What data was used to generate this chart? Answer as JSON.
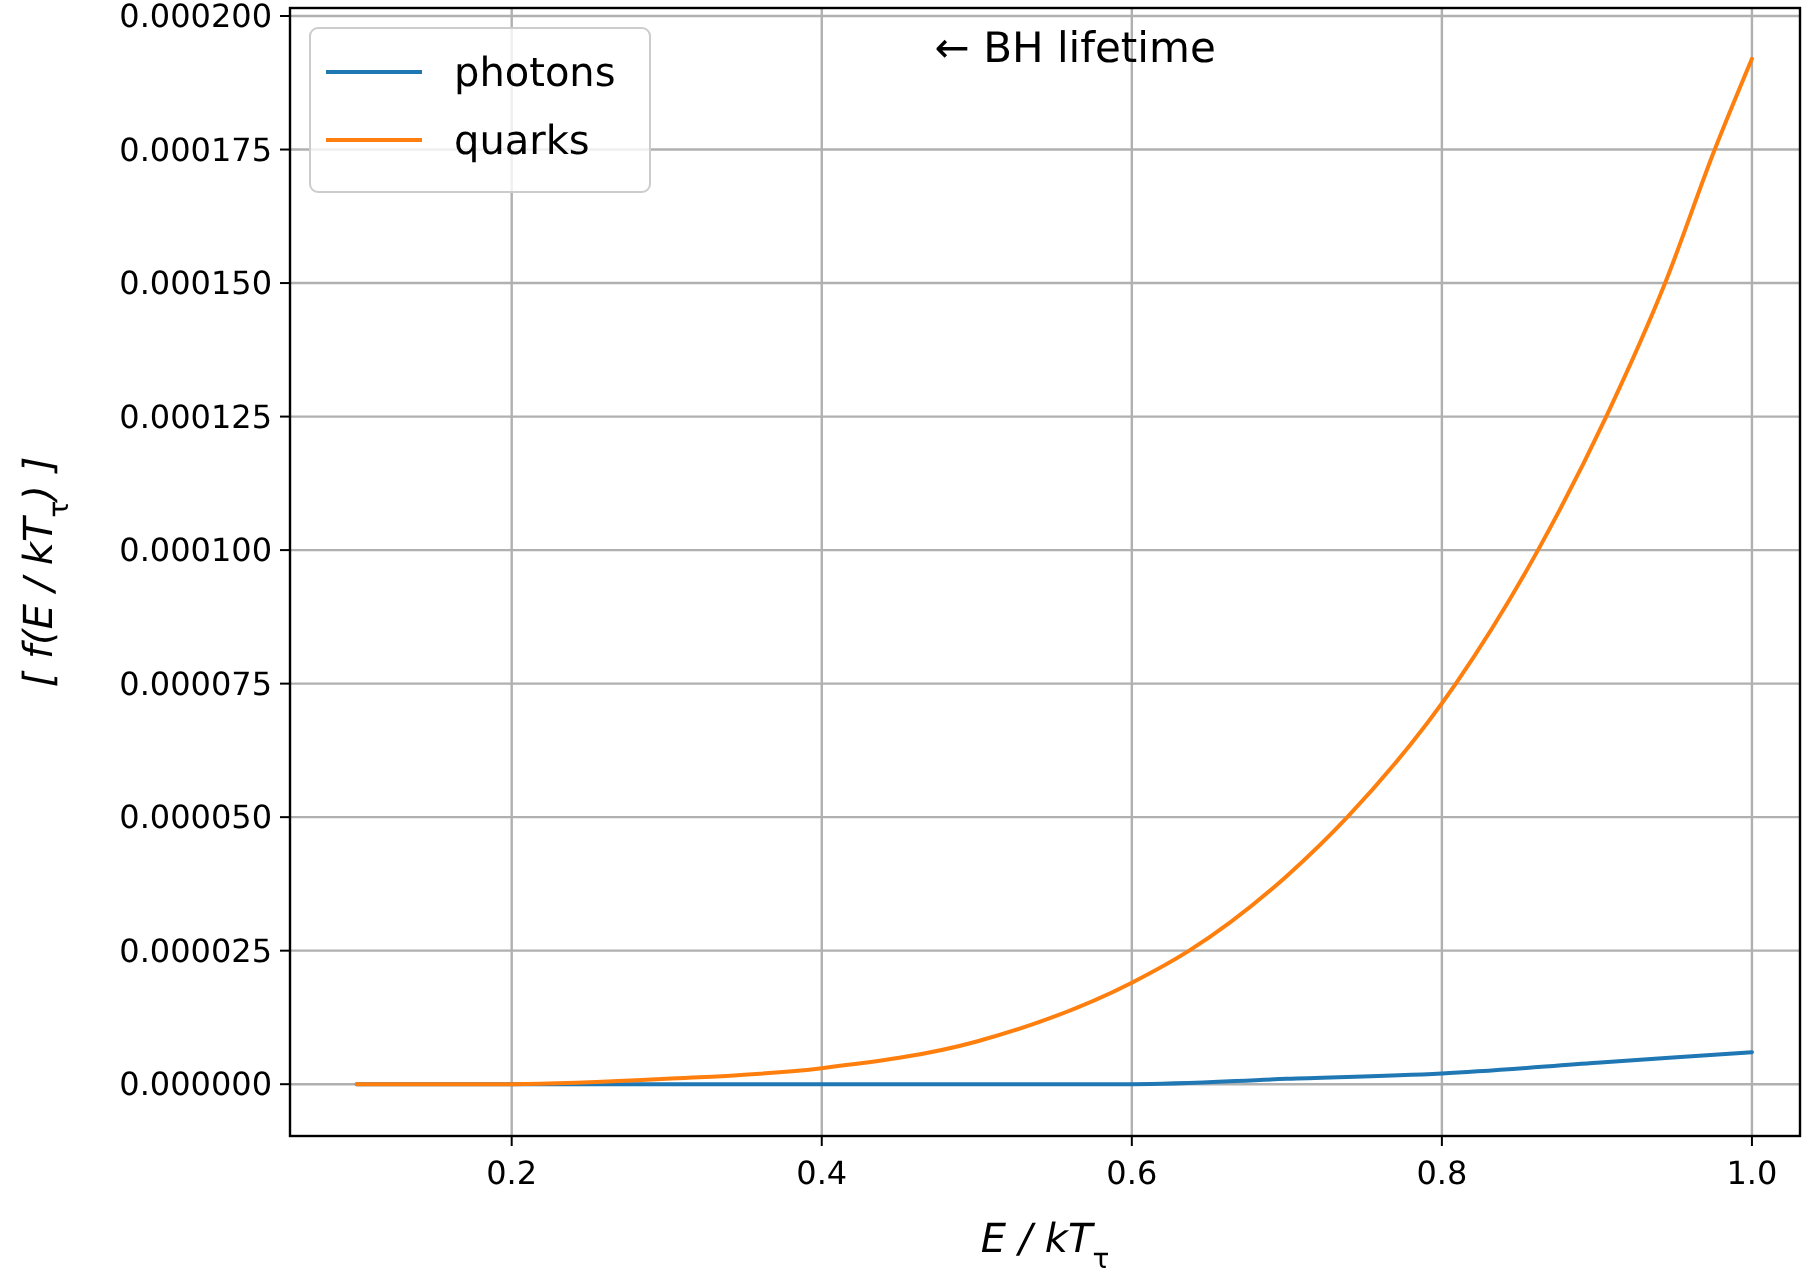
{
  "chart_data": {
    "type": "line",
    "xlabel": "E / kT$_{τ}$",
    "ylabel": "[ f(E / kT$_{τ}$) ]",
    "annotations": [
      "← BH lifetime"
    ],
    "series": [
      {
        "name": "photons",
        "color": "#1f77b4",
        "x": [
          0.1,
          0.2,
          0.3,
          0.4,
          0.5,
          0.6,
          0.7,
          0.8,
          0.9,
          1.0
        ],
        "values": [
          0,
          0,
          0,
          0,
          0,
          0,
          1e-06,
          2e-06,
          4e-06,
          6e-06
        ]
      },
      {
        "name": "quarks",
        "color": "#ff7f0e",
        "x": [
          0.1,
          0.2,
          0.3,
          0.4,
          0.5,
          0.6,
          0.637,
          0.7,
          0.739,
          0.809,
          0.862,
          0.906,
          0.944,
          0.976,
          1.0
        ],
        "values": [
          0,
          0,
          1e-06,
          3e-06,
          8e-06,
          1.9e-05,
          2.5e-05,
          3.9e-05,
          5e-05,
          7.5e-05,
          0.0001,
          0.000125,
          0.00015,
          0.000175,
          0.000192
        ]
      }
    ],
    "xlim": [
      0.057,
      1.031
    ],
    "ylim": [
      -9.7e-06,
      0.0002015
    ],
    "xticks": [
      0.2,
      0.4,
      0.6,
      0.8,
      {
        "value": 1.0,
        "label": "1.0"
      }
    ],
    "yticks": [
      {
        "value": 0,
        "label": "0.000000"
      },
      {
        "value": 2.5e-05,
        "label": "0.000025"
      },
      {
        "value": 5e-05,
        "label": "0.000050"
      },
      {
        "value": 7.5e-05,
        "label": "0.000075"
      },
      {
        "value": 0.0001,
        "label": "0.000100"
      },
      {
        "value": 0.000125,
        "label": "0.000125"
      },
      {
        "value": 0.00015,
        "label": "0.000150"
      },
      {
        "value": 0.000175,
        "label": "0.000175"
      },
      {
        "value": 0.0002,
        "label": "0.000200"
      }
    ],
    "grid": true,
    "legend": "top left"
  }
}
